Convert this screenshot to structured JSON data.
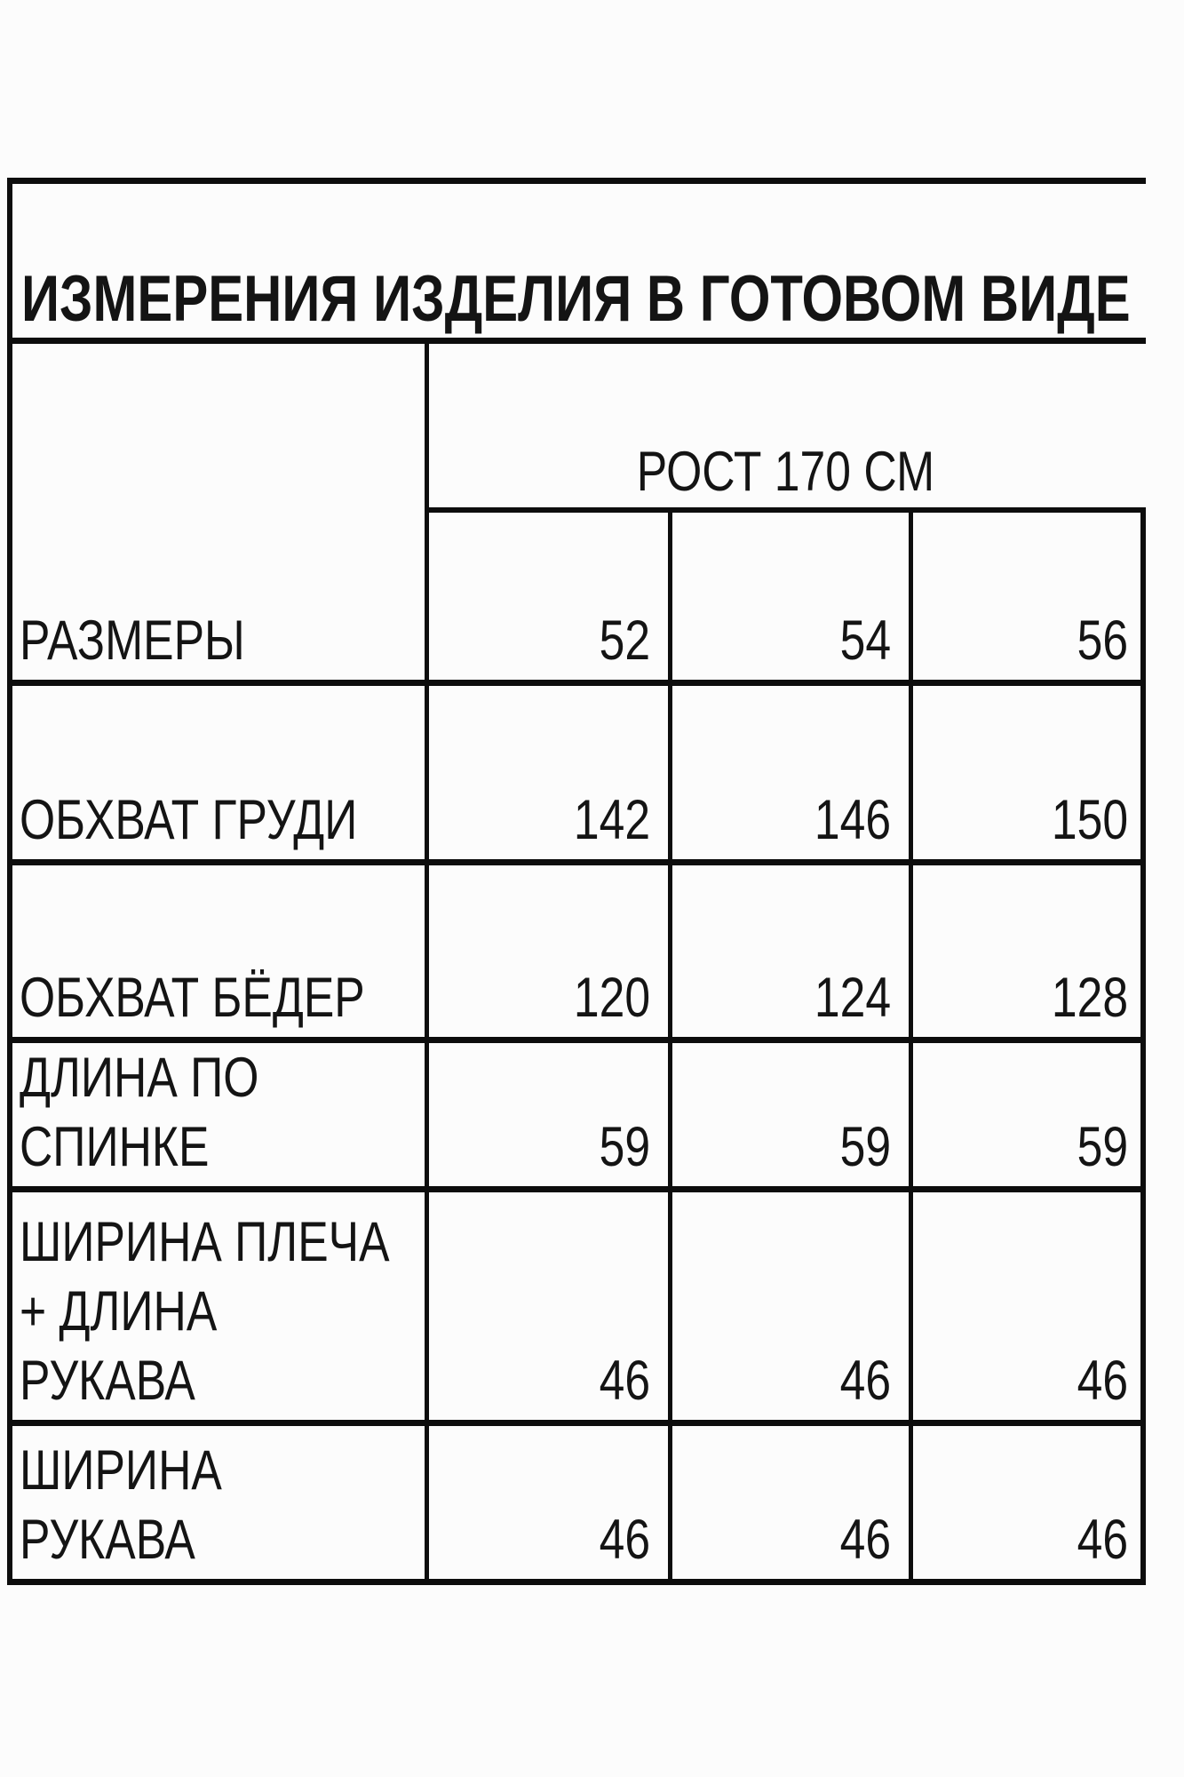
{
  "title": "ИЗМЕРЕНИЯ ИЗДЕЛИЯ В ГОТОВОМ ВИДЕ",
  "header": {
    "height_label": "РОСТ 170 СМ"
  },
  "table": {
    "rows": [
      {
        "name": "sizes",
        "lines": [
          "РАЗМЕРЫ"
        ],
        "values": [
          "52",
          "54",
          "56"
        ]
      },
      {
        "name": "chest-girth",
        "lines": [
          "ОБХВАТ ГРУДИ"
        ],
        "values": [
          "142",
          "146",
          "150"
        ]
      },
      {
        "name": "hip-girth",
        "lines": [
          "ОБХВАТ БЁДЕР"
        ],
        "values": [
          "120",
          "124",
          "128"
        ]
      },
      {
        "name": "back-length",
        "lines": [
          "ДЛИНА ПО",
          "СПИНКЕ"
        ],
        "values": [
          "59",
          "59",
          "59"
        ]
      },
      {
        "name": "shoulder-sleeve",
        "lines": [
          "ШИРИНА ПЛЕЧА",
          "+ ДЛИНА",
          "РУКАВА"
        ],
        "values": [
          "46",
          "46",
          "46"
        ]
      },
      {
        "name": "sleeve-width",
        "lines": [
          "ШИРИНА",
          "РУКАВА"
        ],
        "values": [
          "46",
          "46",
          "46"
        ]
      }
    ]
  },
  "colors": {
    "border": "#0d0d0d",
    "background": "#fcfcfc",
    "text": "#141414"
  }
}
